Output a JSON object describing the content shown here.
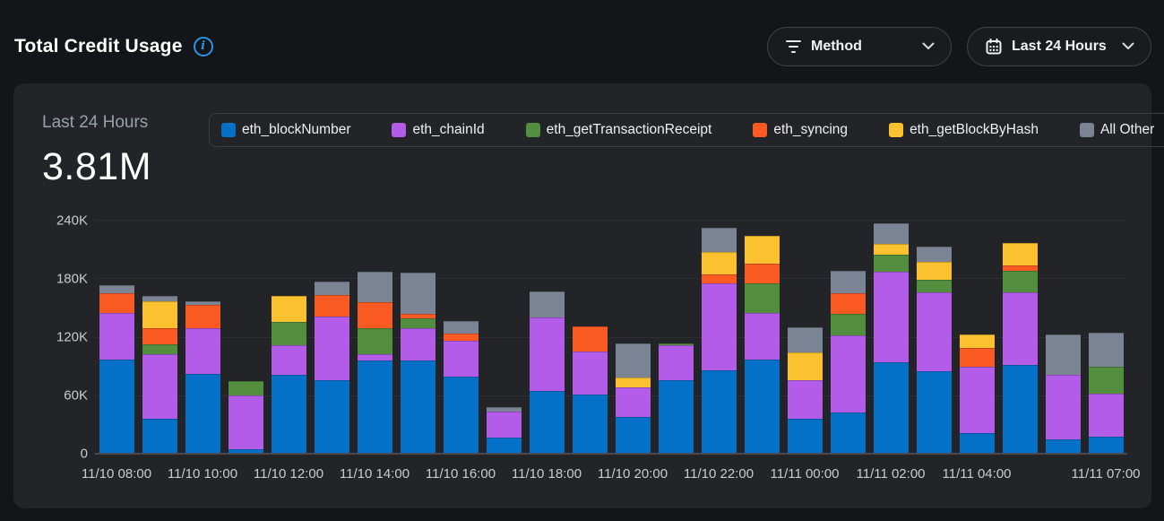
{
  "page": {
    "title": "Total Credit Usage"
  },
  "controls": {
    "method_filter": {
      "label": "Method",
      "icon": "filter-lines-icon"
    },
    "date_range": {
      "label": "Last 24 Hours",
      "icon": "calendar-icon"
    }
  },
  "summary": {
    "period_label": "Last 24 Hours",
    "total_value": "3.81M"
  },
  "colors": {
    "accent_info": "#2796e8",
    "page_bg": "#141518",
    "card_bg": "#222428",
    "series_blue": "#0570c7",
    "series_purple": "#b35ce9",
    "series_green": "#528e3e",
    "series_orange": "#fb5a22",
    "series_yellow": "#fcc12f",
    "series_gray": "#7b8494"
  },
  "chart_data": {
    "type": "bar",
    "stacked": true,
    "title": "Total Credit Usage",
    "xlabel": "",
    "ylabel": "",
    "ylim": [
      0,
      240000
    ],
    "grid": "horizontal",
    "legend_position": "top",
    "y_ticks": [
      "0",
      "60K",
      "120K",
      "180K",
      "240K"
    ],
    "x_ticks": [
      {
        "index": 0,
        "label": "11/10 08:00"
      },
      {
        "index": 2,
        "label": "11/10 10:00"
      },
      {
        "index": 4,
        "label": "11/10 12:00"
      },
      {
        "index": 6,
        "label": "11/10 14:00"
      },
      {
        "index": 8,
        "label": "11/10 16:00"
      },
      {
        "index": 10,
        "label": "11/10 18:00"
      },
      {
        "index": 12,
        "label": "11/10 20:00"
      },
      {
        "index": 14,
        "label": "11/10 22:00"
      },
      {
        "index": 16,
        "label": "11/11 00:00"
      },
      {
        "index": 18,
        "label": "11/11 02:00"
      },
      {
        "index": 20,
        "label": "11/11 04:00"
      },
      {
        "index": 23,
        "label": "11/11 07:00"
      }
    ],
    "n_bars": 24,
    "series": [
      {
        "name": "eth_blockNumber",
        "color": "#0570c7",
        "values": [
          96000,
          35000,
          82000,
          4000,
          81000,
          75000,
          95000,
          95000,
          79000,
          16000,
          64000,
          60000,
          37000,
          75000,
          85000,
          96000,
          35000,
          42000,
          94000,
          84000,
          20000,
          91000,
          14000,
          17000
        ]
      },
      {
        "name": "eth_chainId",
        "color": "#b35ce9",
        "values": [
          49000,
          67000,
          47000,
          55000,
          30000,
          66000,
          7000,
          34000,
          37000,
          27000,
          76000,
          45000,
          31000,
          36000,
          90000,
          49000,
          40000,
          79000,
          93000,
          82000,
          69000,
          75000,
          67000,
          44000
        ]
      },
      {
        "name": "eth_getTransactionReceipt",
        "color": "#528e3e",
        "values": [
          0,
          10000,
          0,
          15000,
          24000,
          0,
          27000,
          10000,
          0,
          0,
          0,
          0,
          0,
          2000,
          0,
          30000,
          0,
          23000,
          18000,
          13000,
          0,
          22000,
          0,
          28000
        ]
      },
      {
        "name": "eth_syncing",
        "color": "#fb5a22",
        "values": [
          20000,
          17000,
          24000,
          0,
          0,
          22000,
          27000,
          5000,
          7000,
          0,
          0,
          26000,
          0,
          0,
          9000,
          21000,
          0,
          21000,
          0,
          0,
          19000,
          6000,
          0,
          0
        ]
      },
      {
        "name": "eth_getBlockByHash",
        "color": "#fcc12f",
        "values": [
          0,
          28000,
          0,
          0,
          27000,
          0,
          0,
          0,
          0,
          0,
          0,
          0,
          10000,
          0,
          24000,
          28000,
          29000,
          0,
          11000,
          18000,
          14000,
          23000,
          0,
          0
        ]
      },
      {
        "name": "All Other",
        "color": "#7b8494",
        "values": [
          8000,
          5000,
          4000,
          0,
          0,
          14000,
          31000,
          42000,
          13000,
          4000,
          27000,
          0,
          35000,
          0,
          25000,
          0,
          26000,
          23000,
          21000,
          16000,
          0,
          0,
          41000,
          35000
        ]
      }
    ]
  }
}
